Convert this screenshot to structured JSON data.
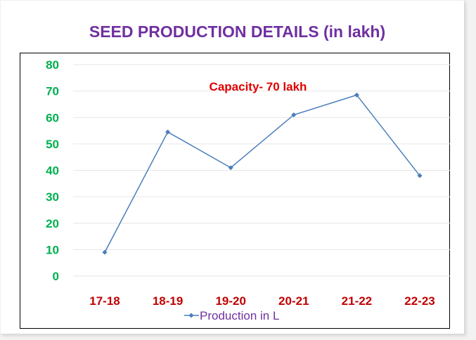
{
  "chart_data": {
    "type": "line",
    "title": "SEED PRODUCTION DETAILS (in lakh)",
    "categories": [
      "17-18",
      "18-19",
      "19-20",
      "20-21",
      "21-22",
      "22-23"
    ],
    "series": [
      {
        "name": "Production in L",
        "values": [
          9,
          54.5,
          41,
          61,
          68.5,
          38
        ]
      }
    ],
    "ylim": [
      0,
      80
    ],
    "yticks": [
      0,
      10,
      20,
      30,
      40,
      50,
      60,
      70,
      80
    ],
    "annotation": "Capacity- 70 lakh",
    "grid": true,
    "legend_position": "bottom"
  },
  "colors": {
    "title": "#7030a0",
    "line": "#4a7ebb",
    "y_tick_labels": "#00b050",
    "x_tick_labels": "#c00000",
    "annotation": "#e00000",
    "legend_text": "#7030a0"
  }
}
